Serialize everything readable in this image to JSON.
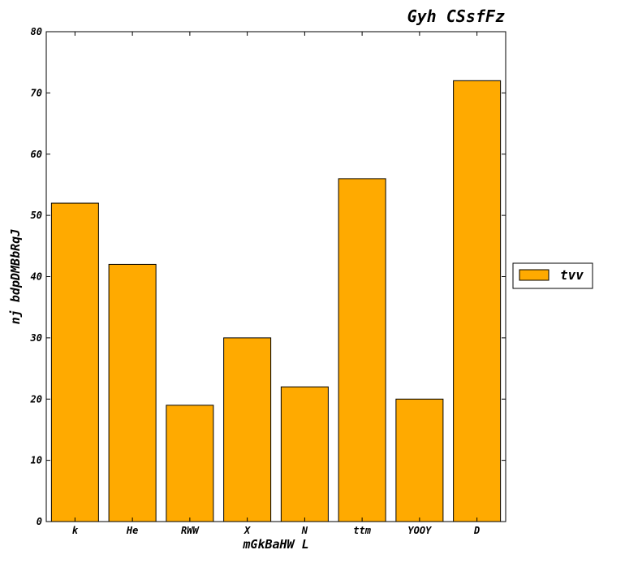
{
  "chart_data": {
    "type": "bar",
    "title": "Gyh CSsfFz",
    "xlabel": "mGkBaHW L",
    "ylabel": "nj bdpDMBbRqJ",
    "categories": [
      "k",
      "He",
      "RWW",
      "X",
      "N",
      "ttm",
      "YOOY",
      "D"
    ],
    "series": [
      {
        "name": "tvv",
        "values": [
          52,
          42,
          19,
          30,
          22,
          56,
          20,
          72
        ],
        "color": "#FFAA00"
      }
    ],
    "ylim": [
      0,
      80
    ],
    "yticks": [
      0,
      10,
      20,
      30,
      40,
      50,
      60,
      70,
      80
    ],
    "grid": false,
    "legend_position": "right"
  }
}
